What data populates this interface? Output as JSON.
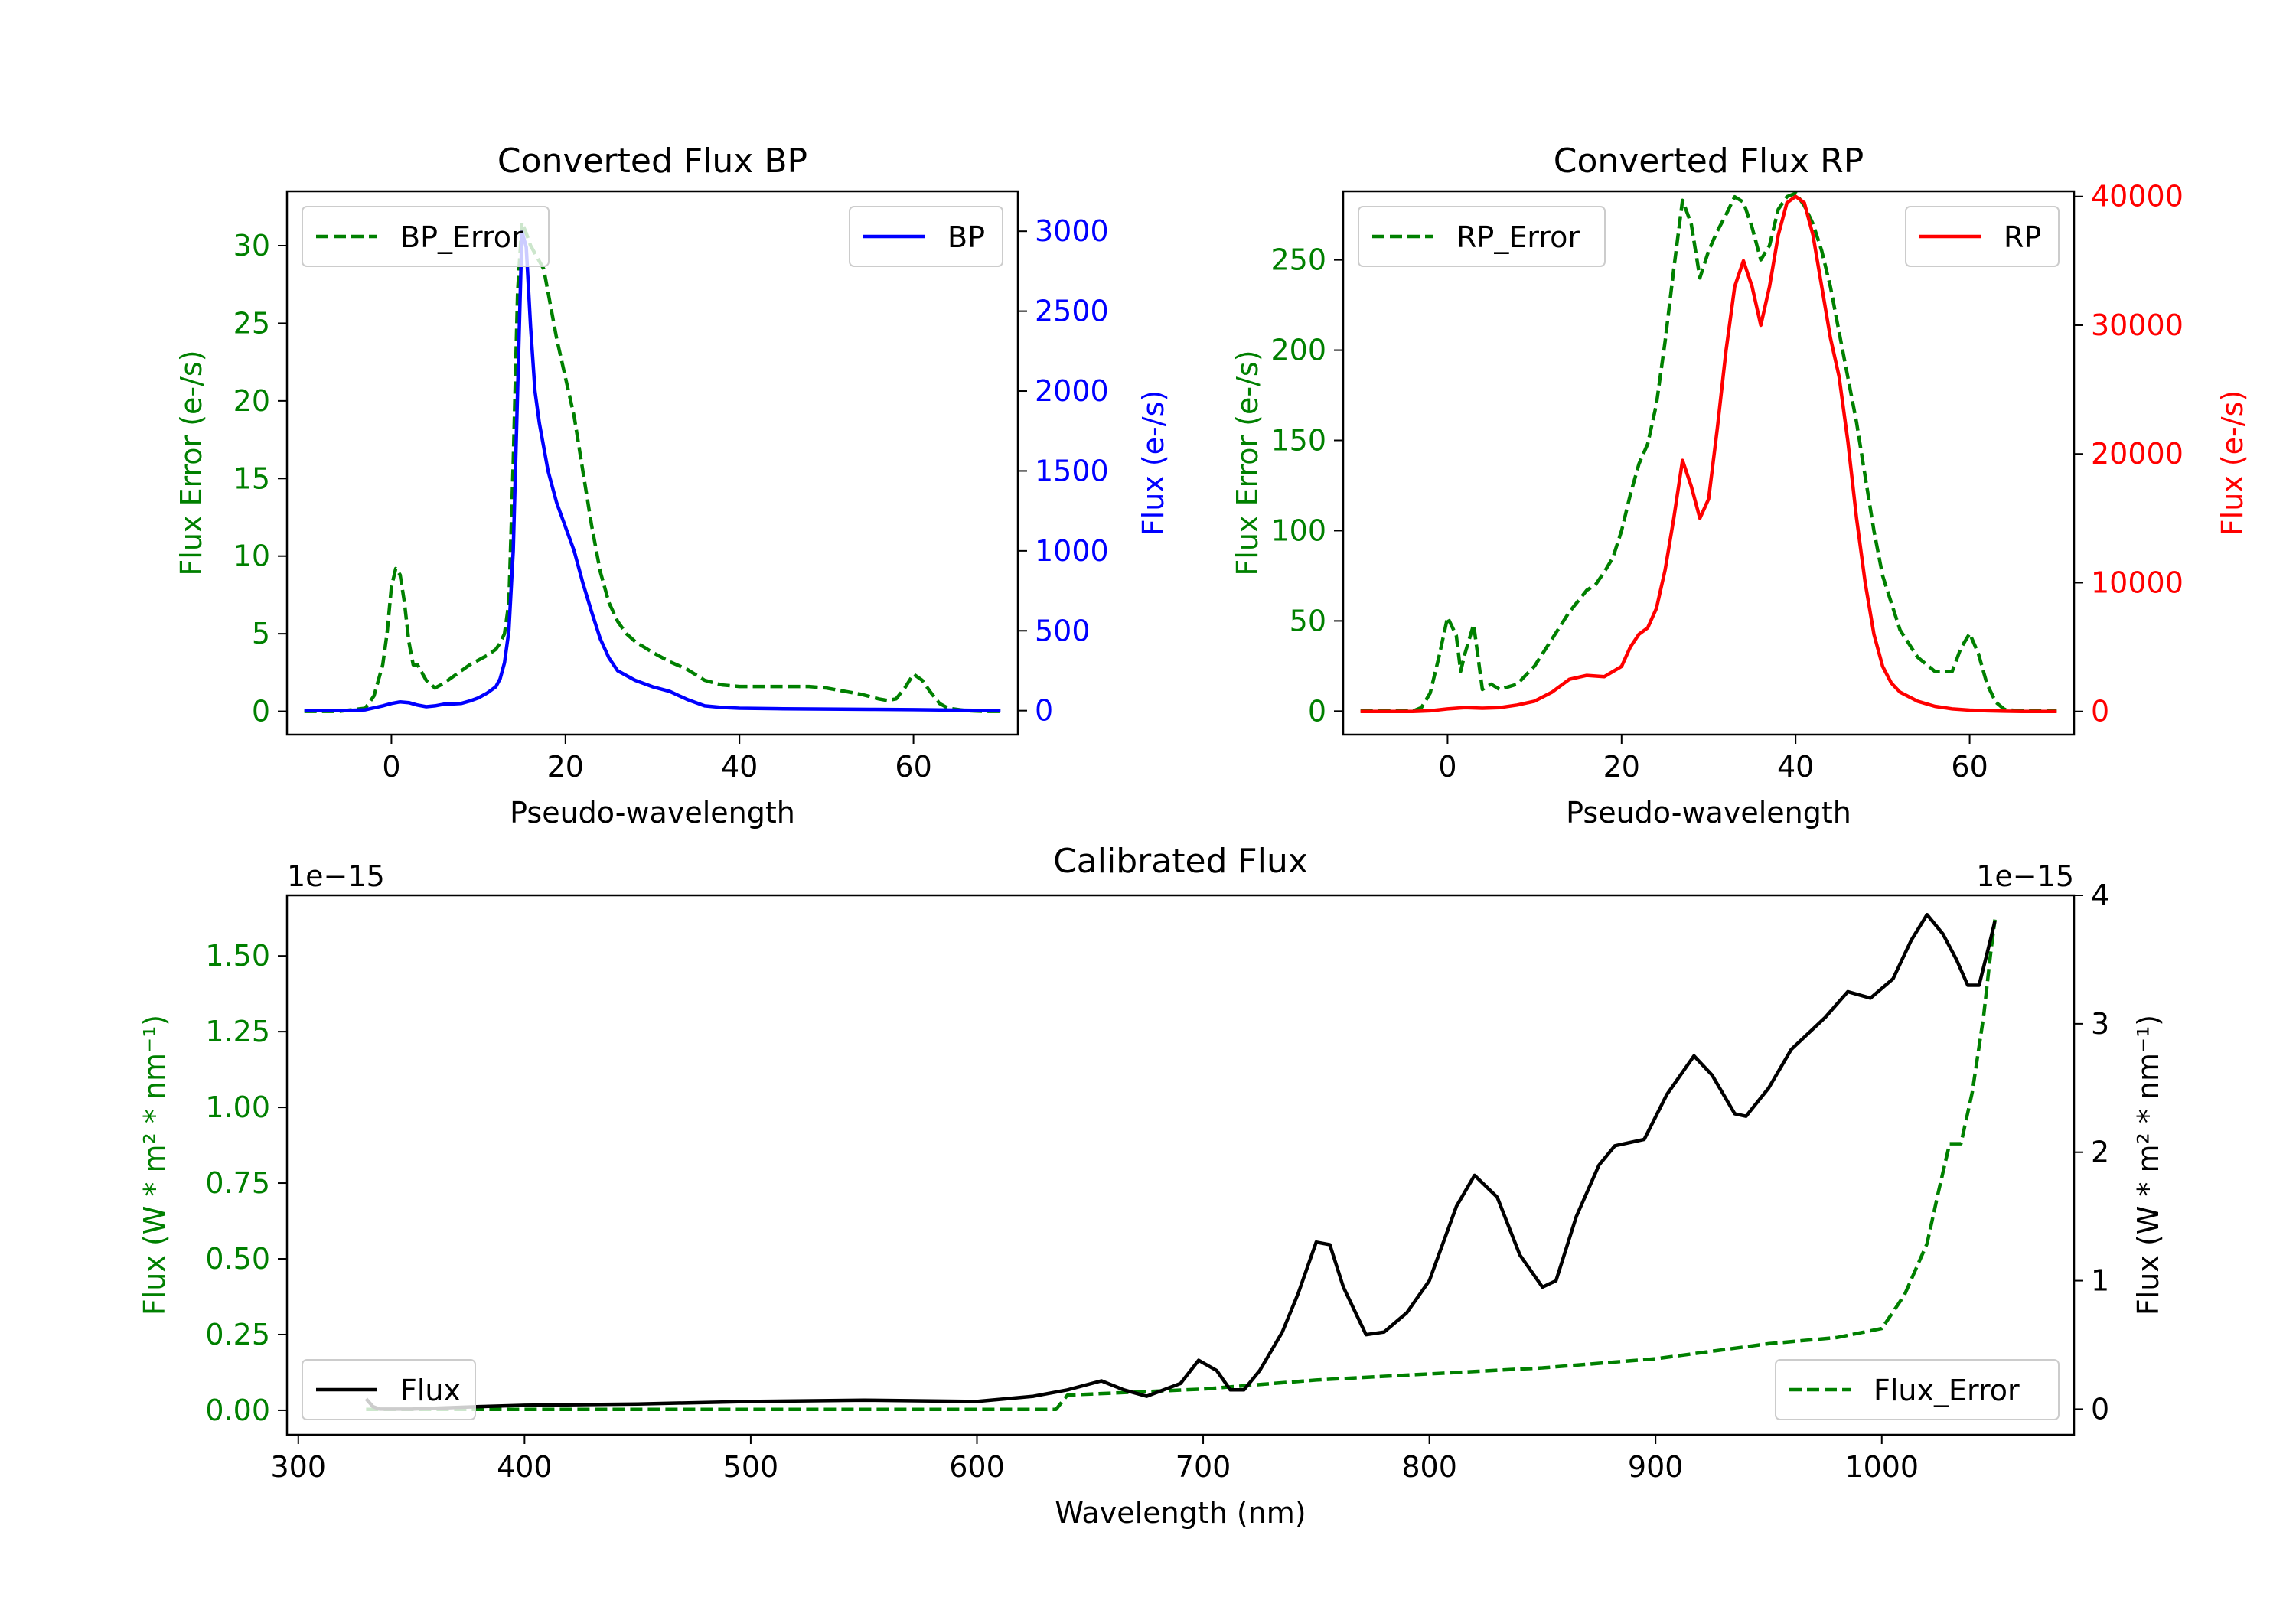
{
  "figure": {
    "background": "#ffffff"
  },
  "chart_data": [
    {
      "id": "bp",
      "type": "line",
      "title": "Converted Flux BP",
      "xlabel": "Pseudo-wavelength",
      "xlim": [
        -12,
        72
      ],
      "xticks": [
        0,
        20,
        40,
        60
      ],
      "left_axis": {
        "label": "Flux Error (e-/s)",
        "color": "#008000",
        "ylim": [
          -1.5,
          33.5
        ],
        "ticks": [
          0,
          5,
          10,
          15,
          20,
          25,
          30
        ]
      },
      "right_axis": {
        "label": "Flux (e-/s)",
        "color": "#0000ff",
        "ylim": [
          -150,
          3250
        ],
        "ticks": [
          0,
          500,
          1000,
          1500,
          2000,
          2500,
          3000
        ]
      },
      "series": [
        {
          "name": "BP_Error",
          "axis": "left",
          "color": "#008000",
          "dash": true,
          "x": [
            -10,
            -6,
            -3,
            -2,
            -1,
            -0.5,
            0,
            0.5,
            1,
            1.5,
            2,
            2.5,
            3,
            4,
            5,
            6,
            7,
            8,
            9,
            10,
            11,
            12,
            12.5,
            13,
            13.5,
            14,
            14.5,
            15,
            15.5,
            16,
            16.5,
            17,
            17.5,
            18,
            19,
            20,
            21,
            22,
            23,
            24,
            25,
            26,
            27,
            28,
            30,
            32,
            34,
            36,
            38,
            40,
            42,
            44,
            46,
            48,
            50,
            52,
            54,
            56,
            57,
            58,
            59,
            60,
            61,
            62,
            63,
            64,
            66,
            68,
            70
          ],
          "values": [
            0,
            0,
            0.2,
            1.0,
            3.0,
            5.0,
            8.0,
            9.2,
            8.8,
            7.0,
            4.5,
            3.0,
            3.0,
            2.0,
            1.5,
            1.8,
            2.2,
            2.6,
            3.0,
            3.3,
            3.6,
            4.0,
            4.4,
            5.0,
            7.0,
            16.0,
            27.0,
            31.5,
            30.8,
            30.0,
            29.5,
            29.0,
            28.5,
            27.0,
            24.0,
            21.5,
            19.0,
            15.5,
            12.0,
            9.0,
            7.0,
            5.8,
            5.0,
            4.5,
            3.8,
            3.2,
            2.7,
            2.0,
            1.7,
            1.6,
            1.6,
            1.6,
            1.6,
            1.6,
            1.5,
            1.3,
            1.1,
            0.8,
            0.7,
            0.8,
            1.5,
            2.4,
            2.0,
            1.2,
            0.5,
            0.2,
            0.05,
            0,
            0
          ]
        },
        {
          "name": "BP",
          "axis": "right",
          "color": "#0000ff",
          "dash": false,
          "x": [
            -10,
            -6,
            -3,
            -1,
            0,
            1,
            2,
            3,
            4,
            5,
            6,
            7,
            8,
            9,
            10,
            11,
            12,
            12.5,
            13,
            13.5,
            14,
            14.5,
            15,
            15.5,
            16,
            16.5,
            17,
            18,
            19,
            20,
            21,
            22,
            23,
            24,
            25,
            26,
            28,
            30,
            32,
            34,
            36,
            38,
            40,
            45,
            50,
            55,
            60,
            65,
            70
          ],
          "values": [
            0,
            0,
            5,
            30,
            45,
            55,
            50,
            35,
            25,
            30,
            40,
            42,
            45,
            60,
            80,
            110,
            150,
            200,
            300,
            500,
            1000,
            2000,
            3000,
            2900,
            2400,
            2000,
            1800,
            1500,
            1300,
            1150,
            1000,
            800,
            620,
            450,
            330,
            250,
            190,
            150,
            120,
            70,
            30,
            20,
            15,
            12,
            10,
            8,
            6,
            3,
            0
          ]
        }
      ],
      "legends": [
        {
          "label": "BP_Error",
          "series": "BP_Error",
          "loc": "upper-left"
        },
        {
          "label": "BP",
          "series": "BP",
          "loc": "upper-right"
        }
      ]
    },
    {
      "id": "rp",
      "type": "line",
      "title": "Converted Flux RP",
      "xlabel": "Pseudo-wavelength",
      "xlim": [
        -12,
        72
      ],
      "xticks": [
        0,
        20,
        40,
        60
      ],
      "left_axis": {
        "label": "Flux Error (e-/s)",
        "color": "#008000",
        "ylim": [
          -13,
          288
        ],
        "ticks": [
          0,
          50,
          100,
          150,
          200,
          250
        ]
      },
      "right_axis": {
        "label": "Flux (e-/s)",
        "color": "#ff0000",
        "ylim": [
          -1800,
          40400
        ],
        "ticks": [
          0,
          10000,
          20000,
          30000,
          40000
        ]
      },
      "series": [
        {
          "name": "RP_Error",
          "axis": "left",
          "color": "#008000",
          "dash": true,
          "x": [
            -10,
            -4,
            -3,
            -2,
            -1,
            0,
            1,
            1.5,
            2,
            3,
            4,
            5,
            6,
            8,
            10,
            12,
            14,
            16,
            17,
            18,
            19,
            20,
            21,
            22,
            23,
            24,
            25,
            26,
            27,
            28,
            29,
            30,
            31,
            32,
            33,
            34,
            35,
            36,
            37,
            38,
            39,
            40,
            41,
            42,
            43,
            44,
            45,
            46,
            47,
            48,
            49,
            50,
            52,
            54,
            56,
            58,
            59,
            60,
            61,
            62,
            63,
            64,
            66,
            68,
            70
          ],
          "values": [
            0,
            0,
            2,
            10,
            30,
            52,
            42,
            22,
            32,
            48,
            12,
            15,
            12,
            15,
            25,
            40,
            55,
            67,
            70,
            77,
            85,
            100,
            120,
            137,
            148,
            170,
            205,
            245,
            283,
            270,
            240,
            255,
            266,
            275,
            285,
            282,
            268,
            250,
            258,
            278,
            285,
            287,
            280,
            270,
            255,
            235,
            210,
            185,
            160,
            130,
            100,
            75,
            45,
            30,
            22,
            22,
            35,
            43,
            32,
            15,
            5,
            1,
            0,
            0,
            0
          ]
        },
        {
          "name": "RP",
          "axis": "right",
          "color": "#ff0000",
          "dash": false,
          "x": [
            -10,
            -4,
            -2,
            0,
            2,
            4,
            6,
            8,
            10,
            12,
            14,
            16,
            18,
            20,
            21,
            22,
            23,
            24,
            25,
            26,
            27,
            28,
            29,
            30,
            31,
            32,
            33,
            34,
            35,
            36,
            37,
            38,
            39,
            40,
            41,
            42,
            43,
            44,
            45,
            46,
            47,
            48,
            49,
            50,
            51,
            52,
            54,
            56,
            58,
            60,
            62,
            64,
            66,
            68,
            70
          ],
          "values": [
            0,
            0,
            50,
            200,
            300,
            250,
            300,
            500,
            800,
            1500,
            2500,
            2800,
            2700,
            3500,
            5000,
            6000,
            6500,
            8000,
            11000,
            15000,
            19500,
            17500,
            15000,
            16500,
            22000,
            28000,
            33000,
            35000,
            33000,
            30000,
            33000,
            37000,
            39500,
            40000,
            39500,
            37000,
            33000,
            29000,
            26000,
            21000,
            15000,
            10000,
            6000,
            3500,
            2200,
            1500,
            800,
            400,
            200,
            100,
            50,
            20,
            0,
            0,
            0
          ]
        }
      ],
      "legends": [
        {
          "label": "RP_Error",
          "series": "RP_Error",
          "loc": "upper-left"
        },
        {
          "label": "RP",
          "series": "RP",
          "loc": "upper-right"
        }
      ]
    },
    {
      "id": "cal",
      "type": "line",
      "title": "Calibrated Flux",
      "xlabel": "Wavelength (nm)",
      "xlim": [
        295,
        1085
      ],
      "xticks": [
        300,
        400,
        500,
        600,
        700,
        800,
        900,
        1000
      ],
      "left_axis": {
        "label": "Flux (W * m² * nm⁻¹)",
        "color": "#008000",
        "ylim": [
          -0.081,
          1.7
        ],
        "ticks": [
          0,
          0.25,
          0.5,
          0.75,
          1.0,
          1.25,
          1.5
        ],
        "tick_labels": [
          "0.00",
          "0.25",
          "0.50",
          "0.75",
          "1.00",
          "1.25",
          "1.50"
        ],
        "offset_text": "1e−15"
      },
      "right_axis": {
        "label": "Flux (W * m² * nm⁻¹)",
        "color": "#000000",
        "ylim": [
          -0.2,
          4.0
        ],
        "ticks": [
          0,
          1,
          2,
          3,
          4
        ],
        "tick_labels": [
          "0",
          "1",
          "2",
          "3",
          "4"
        ],
        "offset_text": "1e−15"
      },
      "series": [
        {
          "name": "Flux_Error",
          "axis": "left",
          "color": "#008000",
          "dash": true,
          "x": [
            330,
            400,
            500,
            600,
            635,
            640,
            700,
            750,
            800,
            850,
            900,
            950,
            980,
            1000,
            1010,
            1020,
            1025,
            1030,
            1035,
            1040,
            1045,
            1048,
            1050
          ],
          "values": [
            0.003,
            0.003,
            0.003,
            0.003,
            0.003,
            0.05,
            0.07,
            0.1,
            0.12,
            0.14,
            0.17,
            0.22,
            0.24,
            0.27,
            0.38,
            0.55,
            0.72,
            0.88,
            0.88,
            1.05,
            1.3,
            1.5,
            1.62
          ]
        },
        {
          "name": "Flux",
          "axis": "right",
          "color": "#000000",
          "dash": false,
          "x": [
            330,
            333,
            336,
            350,
            380,
            400,
            450,
            500,
            550,
            600,
            625,
            640,
            655,
            665,
            675,
            690,
            698,
            706,
            712,
            718,
            725,
            735,
            742,
            750,
            756,
            762,
            772,
            780,
            790,
            800,
            812,
            820,
            830,
            840,
            850,
            856,
            865,
            875,
            882,
            895,
            905,
            917,
            925,
            935,
            940,
            950,
            960,
            975,
            985,
            995,
            1005,
            1013,
            1020,
            1027,
            1033,
            1038,
            1043,
            1048,
            1050
          ],
          "values": [
            0.08,
            0.02,
            0.0,
            0.0,
            0.02,
            0.03,
            0.04,
            0.06,
            0.07,
            0.06,
            0.1,
            0.15,
            0.22,
            0.15,
            0.1,
            0.2,
            0.38,
            0.3,
            0.15,
            0.15,
            0.3,
            0.6,
            0.9,
            1.3,
            1.28,
            0.95,
            0.58,
            0.6,
            0.75,
            1.0,
            1.58,
            1.82,
            1.65,
            1.2,
            0.95,
            1.0,
            1.5,
            1.9,
            2.05,
            2.1,
            2.45,
            2.75,
            2.6,
            2.3,
            2.28,
            2.5,
            2.8,
            3.05,
            3.25,
            3.2,
            3.35,
            3.65,
            3.85,
            3.7,
            3.5,
            3.3,
            3.3,
            3.65,
            3.8
          ]
        }
      ],
      "legends": [
        {
          "label": "Flux",
          "series": "Flux",
          "loc": "lower-left"
        },
        {
          "label": "Flux_Error",
          "series": "Flux_Error",
          "loc": "lower-right"
        }
      ]
    }
  ]
}
